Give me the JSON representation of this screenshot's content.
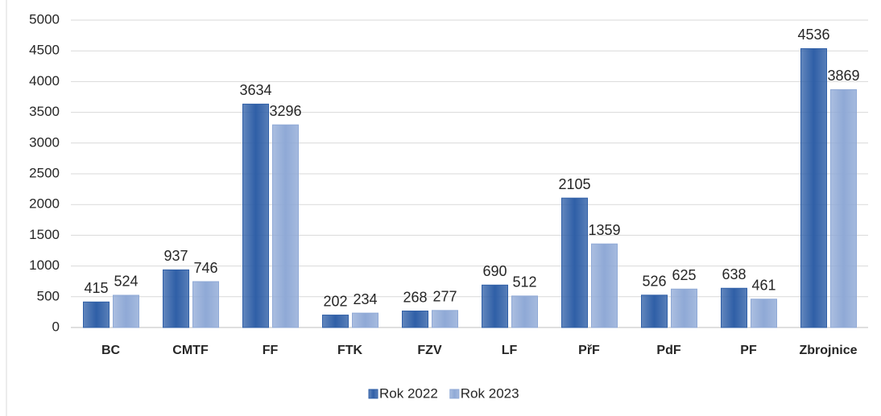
{
  "chart_data": {
    "type": "bar",
    "categories": [
      "BC",
      "CMTF",
      "FF",
      "FTK",
      "FZV",
      "LF",
      "PřF",
      "PdF",
      "PF",
      "Zbrojnice"
    ],
    "series": [
      {
        "name": "Rok 2022",
        "color": "#2f5fa7",
        "values": [
          415,
          937,
          3634,
          202,
          268,
          690,
          2105,
          526,
          638,
          4536
        ]
      },
      {
        "name": "Rok 2023",
        "color": "#8fa9d6",
        "values": [
          524,
          746,
          3296,
          234,
          277,
          512,
          1359,
          625,
          461,
          3869
        ]
      }
    ],
    "ylim": [
      0,
      5000
    ],
    "yticks": [
      0,
      500,
      1000,
      1500,
      2000,
      2500,
      3000,
      3500,
      4000,
      4500,
      5000
    ],
    "grid": true,
    "legend": "bottom"
  }
}
